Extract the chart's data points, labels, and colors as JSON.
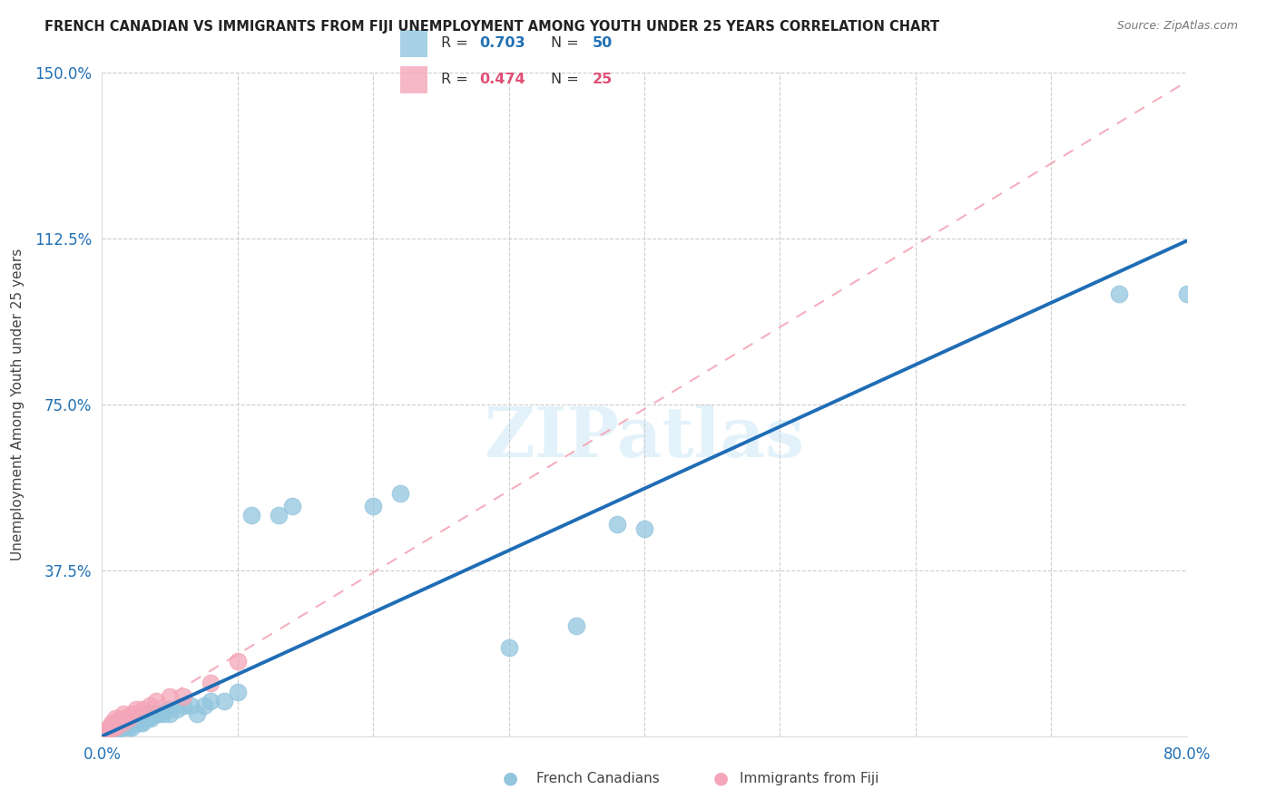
{
  "title": "FRENCH CANADIAN VS IMMIGRANTS FROM FIJI UNEMPLOYMENT AMONG YOUTH UNDER 25 YEARS CORRELATION CHART",
  "source": "Source: ZipAtlas.com",
  "ylabel": "Unemployment Among Youth under 25 years",
  "xlim": [
    0.0,
    0.8
  ],
  "ylim": [
    0.0,
    1.5
  ],
  "xticks": [
    0.0,
    0.1,
    0.2,
    0.3,
    0.4,
    0.5,
    0.6,
    0.7,
    0.8
  ],
  "xticklabels": [
    "0.0%",
    "",
    "",
    "",
    "",
    "",
    "",
    "",
    "80.0%"
  ],
  "ytick_positions": [
    0.0,
    0.375,
    0.75,
    1.125,
    1.5
  ],
  "yticklabels": [
    "",
    "37.5%",
    "75.0%",
    "112.5%",
    "150.0%"
  ],
  "french_R": 0.703,
  "french_N": 50,
  "fiji_R": 0.474,
  "fiji_N": 25,
  "french_color": "#92c5de",
  "fiji_color": "#f4a6b8",
  "french_line_color": "#1f6db5",
  "fiji_line_color": "#f4a6b8",
  "watermark": "ZIPatlas",
  "french_line_x1": 0.0,
  "french_line_y1": 0.0,
  "french_line_x2": 0.8,
  "french_line_y2": 1.12,
  "fiji_line_x1": 0.0,
  "fiji_line_y1": 0.0,
  "fiji_line_x2": 0.8,
  "fiji_line_y2": 1.48,
  "french_x": [
    0.005,
    0.008,
    0.01,
    0.012,
    0.013,
    0.015,
    0.015,
    0.016,
    0.017,
    0.018,
    0.02,
    0.02,
    0.022,
    0.022,
    0.025,
    0.025,
    0.026,
    0.027,
    0.028,
    0.03,
    0.03,
    0.032,
    0.034,
    0.035,
    0.036,
    0.038,
    0.04,
    0.042,
    0.045,
    0.048,
    0.05,
    0.055,
    0.06,
    0.065,
    0.07,
    0.075,
    0.08,
    0.09,
    0.1,
    0.11,
    0.13,
    0.14,
    0.2,
    0.22,
    0.3,
    0.35,
    0.38,
    0.4,
    0.75,
    0.8
  ],
  "french_y": [
    0.01,
    0.02,
    0.01,
    0.02,
    0.02,
    0.02,
    0.03,
    0.02,
    0.03,
    0.03,
    0.02,
    0.03,
    0.02,
    0.04,
    0.03,
    0.04,
    0.03,
    0.04,
    0.03,
    0.03,
    0.05,
    0.04,
    0.04,
    0.05,
    0.04,
    0.05,
    0.05,
    0.05,
    0.05,
    0.06,
    0.05,
    0.06,
    0.07,
    0.07,
    0.05,
    0.07,
    0.08,
    0.08,
    0.1,
    0.5,
    0.5,
    0.52,
    0.52,
    0.55,
    0.2,
    0.25,
    0.48,
    0.47,
    1.0,
    1.0
  ],
  "fiji_x": [
    0.003,
    0.004,
    0.005,
    0.006,
    0.007,
    0.007,
    0.008,
    0.009,
    0.01,
    0.01,
    0.012,
    0.013,
    0.015,
    0.016,
    0.018,
    0.02,
    0.022,
    0.025,
    0.03,
    0.035,
    0.04,
    0.05,
    0.06,
    0.08,
    0.1
  ],
  "fiji_y": [
    0.01,
    0.01,
    0.02,
    0.02,
    0.02,
    0.03,
    0.02,
    0.03,
    0.02,
    0.04,
    0.03,
    0.04,
    0.03,
    0.05,
    0.04,
    0.04,
    0.05,
    0.06,
    0.06,
    0.07,
    0.08,
    0.09,
    0.09,
    0.12,
    0.17
  ]
}
